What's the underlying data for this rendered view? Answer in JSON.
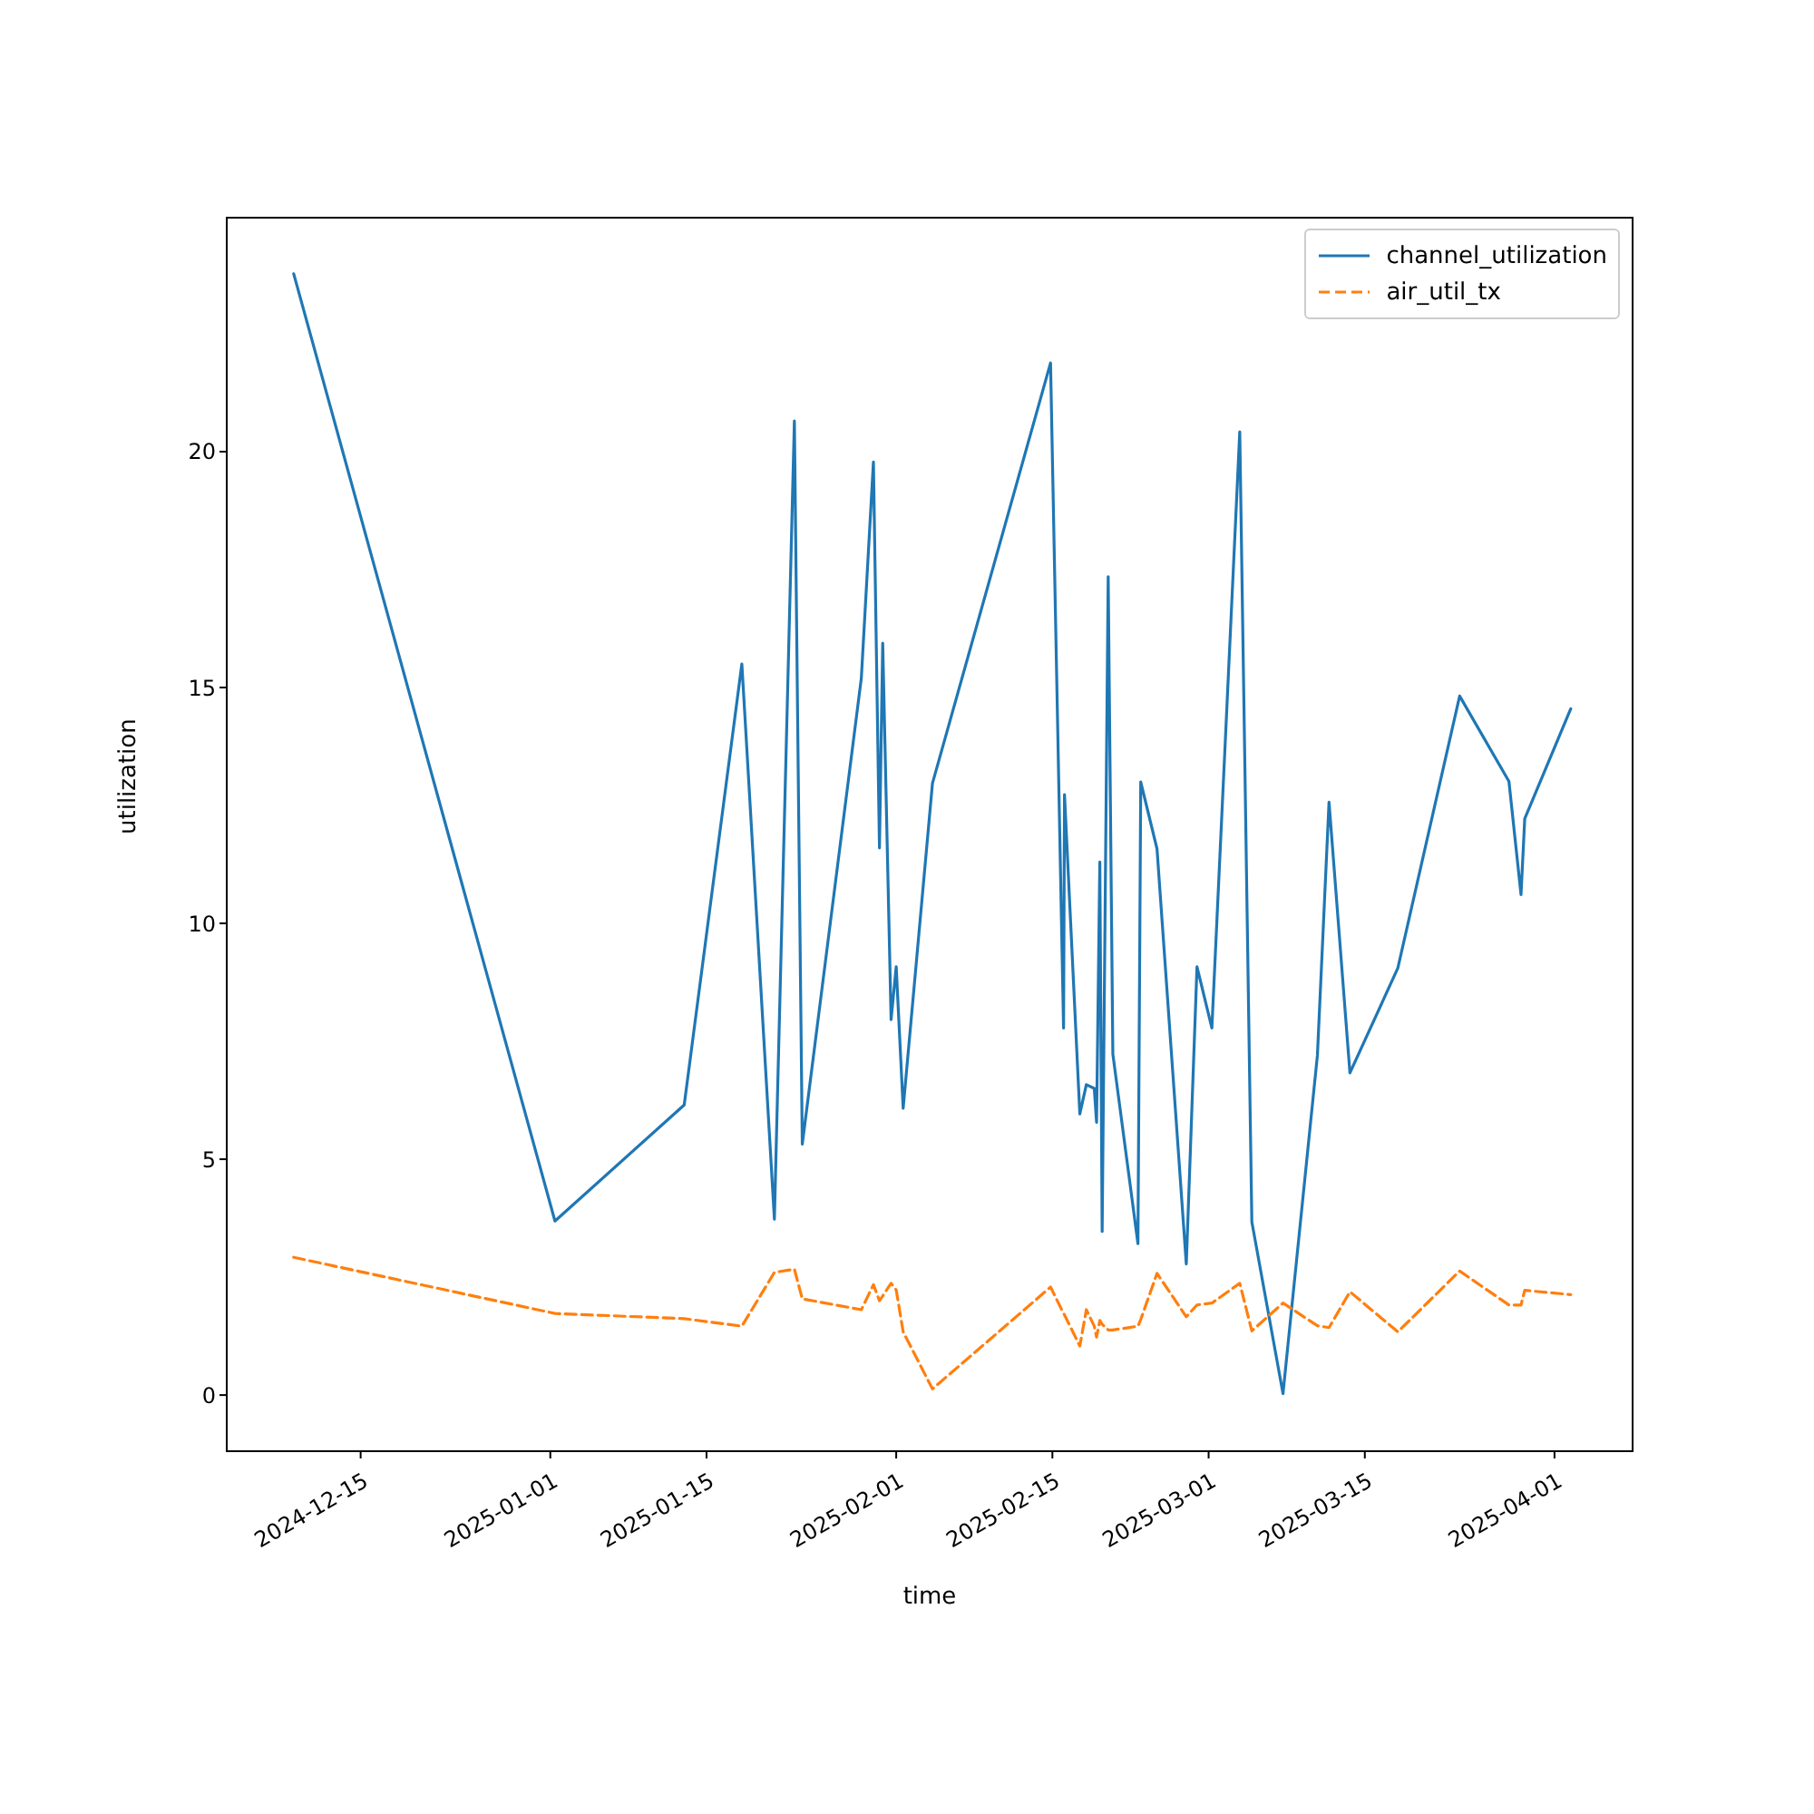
{
  "chart_data": {
    "type": "line",
    "xlabel": "time",
    "ylabel": "utilization",
    "x": [
      "2024-12-09",
      "2025-01-01T10:00",
      "2025-01-13",
      "2025-01-18T04:00",
      "2025-01-21T02:00",
      "2025-01-22T21:00",
      "2025-01-23T14:00",
      "2025-01-28T21:00",
      "2025-01-29T23:00",
      "2025-01-30T12:00",
      "2025-01-30T19:00",
      "2025-01-31T13:00",
      "2025-02-01T00:00",
      "2025-02-01T15:00",
      "2025-02-04T06:00",
      "2025-02-14T20:00",
      "2025-02-16T00:00",
      "2025-02-16T02:00",
      "2025-02-17T11:00",
      "2025-02-18T01:00",
      "2025-02-18T18:00",
      "2025-02-18T23:00",
      "2025-02-19T06:00",
      "2025-02-19T11:00",
      "2025-02-20T00:00",
      "2025-02-20T10:00",
      "2025-02-22T16:00",
      "2025-02-22T22:00",
      "2025-02-24T09:00",
      "2025-02-27T00:00",
      "2025-02-27T23:00",
      "2025-03-01T07:00",
      "2025-03-03T19:00",
      "2025-03-04T21:00",
      "2025-03-07T16:00",
      "2025-03-10T18:00",
      "2025-03-11T19:00",
      "2025-03-13T16:00",
      "2025-03-17T23:00",
      "2025-03-23T12:00",
      "2025-03-27T22:00",
      "2025-03-29T00:00",
      "2025-03-29T08:00",
      "2025-04-02T11:00"
    ],
    "series": [
      {
        "name": "channel_utilization",
        "color": "#1f77b4",
        "line_style": "solid",
        "values": [
          23.77,
          3.69,
          6.15,
          15.5,
          3.73,
          20.65,
          5.32,
          15.2,
          19.78,
          11.6,
          15.94,
          7.96,
          9.08,
          6.08,
          12.97,
          21.88,
          7.78,
          12.73,
          5.96,
          6.58,
          6.5,
          5.78,
          11.3,
          3.47,
          17.35,
          7.23,
          3.21,
          13.0,
          11.58,
          2.78,
          9.08,
          7.78,
          20.42,
          3.67,
          0.03,
          7.2,
          12.57,
          6.83,
          9.05,
          14.82,
          13.01,
          10.61,
          12.22,
          14.55
        ]
      },
      {
        "name": "air_util_tx",
        "color": "#ff7f0e",
        "line_style": "dashed",
        "values": [
          2.92,
          1.73,
          1.62,
          1.46,
          2.6,
          2.67,
          2.04,
          1.81,
          2.34,
          2.0,
          2.1,
          2.37,
          2.23,
          1.34,
          0.13,
          2.29,
          1.73,
          1.7,
          1.04,
          1.81,
          1.46,
          1.23,
          1.58,
          1.5,
          1.38,
          1.38,
          1.46,
          1.6,
          2.58,
          1.66,
          1.91,
          1.95,
          2.37,
          1.36,
          1.95,
          1.47,
          1.43,
          2.19,
          1.34,
          2.63,
          1.91,
          1.91,
          2.22,
          2.13
        ]
      }
    ],
    "xlim": [
      "2024-12-03",
      "2025-04-08"
    ],
    "xticks": [
      "2024-12-15",
      "2025-01-01",
      "2025-01-15",
      "2025-02-01",
      "2025-02-15",
      "2025-03-01",
      "2025-03-15",
      "2025-04-01"
    ],
    "ylim": [
      -1.19,
      24.96
    ],
    "yticks": [
      0,
      5,
      10,
      15,
      20
    ],
    "grid": false,
    "legend": "top right",
    "marker": "none"
  }
}
